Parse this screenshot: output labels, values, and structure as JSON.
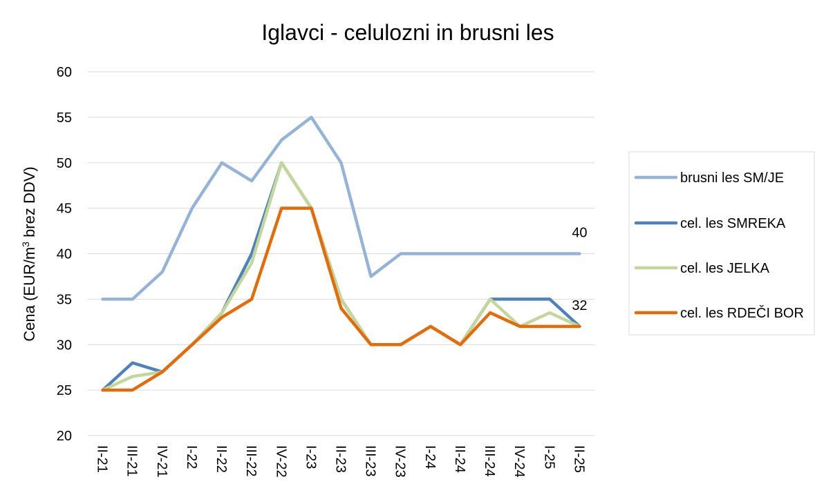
{
  "chart_data": {
    "type": "line",
    "title": "Iglavci - celulozni in brusni les",
    "ylabel_main": "Cena (EUR/m",
    "ylabel_sup": "3",
    "ylabel_rest": " brez DDV)",
    "ylim": [
      20,
      60
    ],
    "yticks": [
      20,
      25,
      30,
      35,
      40,
      45,
      50,
      55,
      60
    ],
    "grid": "horizontal",
    "legend_position": "right",
    "categories": [
      "II-21",
      "III-21",
      "IV-21",
      "I-22",
      "II-22",
      "III-22",
      "IV-22",
      "I-23",
      "II-23",
      "III-23",
      "IV-23",
      "I-24",
      "II-24",
      "III-24",
      "IV-24",
      "I-25",
      "II-25"
    ],
    "series": [
      {
        "name": "brusni les SM/JE",
        "color": "#95B3D7",
        "values": [
          35,
          35,
          38,
          45,
          50,
          48,
          52.5,
          55,
          50,
          37.5,
          40,
          40,
          40,
          40,
          40,
          40,
          40
        ]
      },
      {
        "name": "cel. les SMREKA",
        "color": "#4F81BD",
        "values": [
          25,
          28,
          27,
          30,
          33.5,
          40,
          50,
          45,
          35,
          30,
          30,
          32,
          30,
          35,
          35,
          35,
          32
        ]
      },
      {
        "name": "cel. les JELKA",
        "color": "#C3D69B",
        "values": [
          25,
          26.5,
          27,
          30,
          33.5,
          39,
          50,
          45,
          35,
          30,
          30,
          32,
          30,
          35,
          32,
          33.5,
          32
        ]
      },
      {
        "name": "cel. les RDEČI BOR",
        "color": "#E36C09",
        "values": [
          25,
          25,
          27,
          30,
          33,
          35,
          45,
          45,
          34,
          30,
          30,
          32,
          30,
          33.5,
          32,
          32,
          32
        ]
      }
    ],
    "annotations": [
      {
        "text": "40",
        "series_index": 0,
        "point_index": 16
      },
      {
        "text": "32",
        "series_index": 1,
        "point_index": 16
      }
    ]
  }
}
